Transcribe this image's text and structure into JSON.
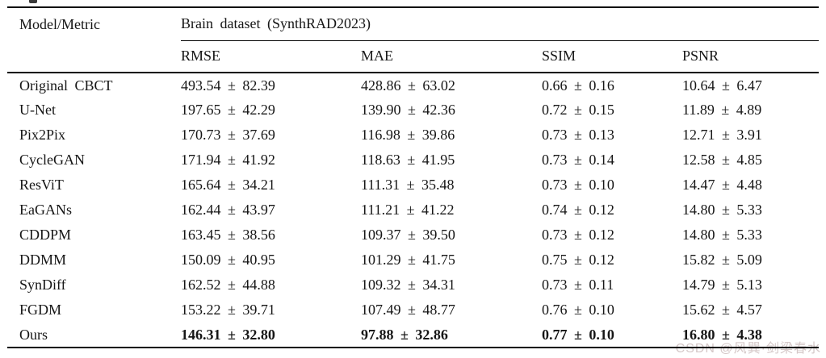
{
  "page": {
    "watermark": "CSDN @风巽·剑梁春水",
    "background_color": "#ffffff",
    "text_color": "#161616",
    "rule_color": "#000000",
    "watermark_color": "#d5c8c8"
  },
  "table": {
    "corner_header": "Model/Metric",
    "group_header": "Brain dataset (SynthRAD2023)",
    "metric_headers": [
      "RMSE",
      "MAE",
      "SSIM",
      "PSNR"
    ],
    "rows": [
      {
        "model": "Original CBCT",
        "rmse": "493.54 ± 82.39",
        "mae": "428.86 ± 63.02",
        "ssim": "0.66 ± 0.16",
        "psnr": "10.64 ± 6.47",
        "bold": false
      },
      {
        "model": "U-Net",
        "rmse": "197.65 ± 42.29",
        "mae": "139.90 ± 42.36",
        "ssim": "0.72 ± 0.15",
        "psnr": "11.89 ± 4.89",
        "bold": false
      },
      {
        "model": "Pix2Pix",
        "rmse": "170.73 ± 37.69",
        "mae": "116.98 ± 39.86",
        "ssim": "0.73 ± 0.13",
        "psnr": "12.71 ± 3.91",
        "bold": false
      },
      {
        "model": "CycleGAN",
        "rmse": "171.94 ± 41.92",
        "mae": "118.63 ± 41.95",
        "ssim": "0.73 ± 0.14",
        "psnr": "12.58 ± 4.85",
        "bold": false
      },
      {
        "model": "ResViT",
        "rmse": "165.64 ± 34.21",
        "mae": "111.31 ± 35.48",
        "ssim": "0.73 ± 0.10",
        "psnr": "14.47 ± 4.48",
        "bold": false
      },
      {
        "model": "EaGANs",
        "rmse": "162.44 ± 43.97",
        "mae": "111.21 ± 41.22",
        "ssim": "0.74 ± 0.12",
        "psnr": "14.80 ± 5.33",
        "bold": false
      },
      {
        "model": "CDDPM",
        "rmse": "163.45 ± 38.56",
        "mae": "109.37 ± 39.50",
        "ssim": "0.73 ± 0.12",
        "psnr": "14.80 ± 5.33",
        "bold": false
      },
      {
        "model": "DDMM",
        "rmse": "150.09 ± 40.95",
        "mae": "101.29 ± 41.75",
        "ssim": "0.75 ± 0.12",
        "psnr": "15.82 ± 5.09",
        "bold": false
      },
      {
        "model": "SynDiff",
        "rmse": "162.52 ± 44.88",
        "mae": "109.32 ± 34.31",
        "ssim": "0.73 ± 0.11",
        "psnr": "14.79 ± 5.13",
        "bold": false
      },
      {
        "model": "FGDM",
        "rmse": "153.22 ± 39.71",
        "mae": "107.49 ± 48.77",
        "ssim": "0.76 ± 0.10",
        "psnr": "15.62 ± 4.57",
        "bold": false
      },
      {
        "model": "Ours",
        "rmse": "146.31 ± 32.80",
        "mae": "97.88 ± 32.86",
        "ssim": "0.77 ± 0.10",
        "psnr": "16.80 ± 4.38",
        "bold": true
      }
    ]
  }
}
